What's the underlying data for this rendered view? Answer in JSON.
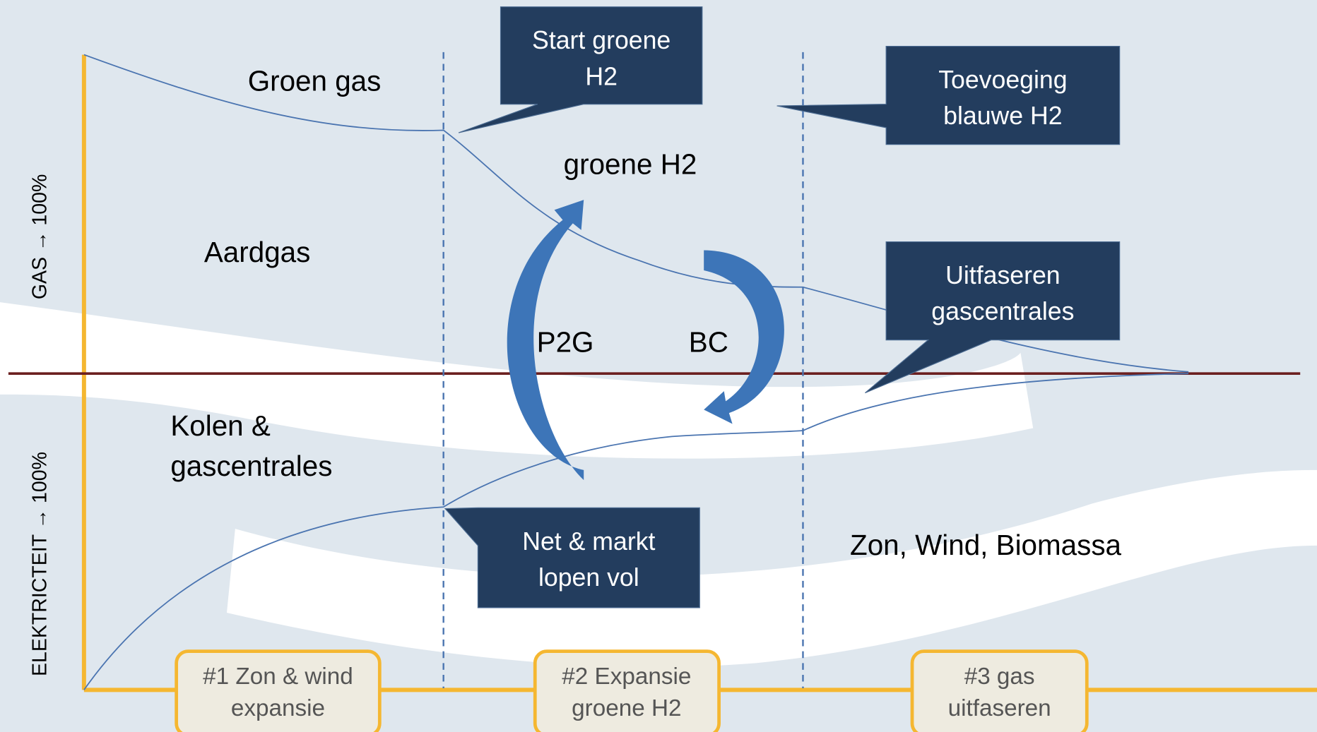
{
  "axes": {
    "gas": "GAS → 100%",
    "electricity": "ELEKTRICTEIT → 100%"
  },
  "regions": {
    "groen_gas": "Groen gas",
    "aardgas": "Aardgas",
    "groene_h2": "groene H2",
    "kolen": [
      "Kolen &",
      "gascentrales"
    ],
    "zon": "Zon, Wind, Biomassa",
    "p2g": "P2G",
    "bc": "BC"
  },
  "callouts": [
    {
      "lines": [
        "Start groene",
        "H2"
      ]
    },
    {
      "lines": [
        "Toevoeging",
        "blauwe H2"
      ]
    },
    {
      "lines": [
        "Uitfaseren",
        "gascentrales"
      ]
    },
    {
      "lines": [
        "Net & markt",
        "lopen vol"
      ]
    }
  ],
  "phases": [
    {
      "lines": [
        "#1 Zon & wind",
        "expansie"
      ]
    },
    {
      "lines": [
        "#2 Expansie",
        "groene H2"
      ]
    },
    {
      "lines": [
        "#3 gas",
        "uitfaseren"
      ]
    }
  ]
}
